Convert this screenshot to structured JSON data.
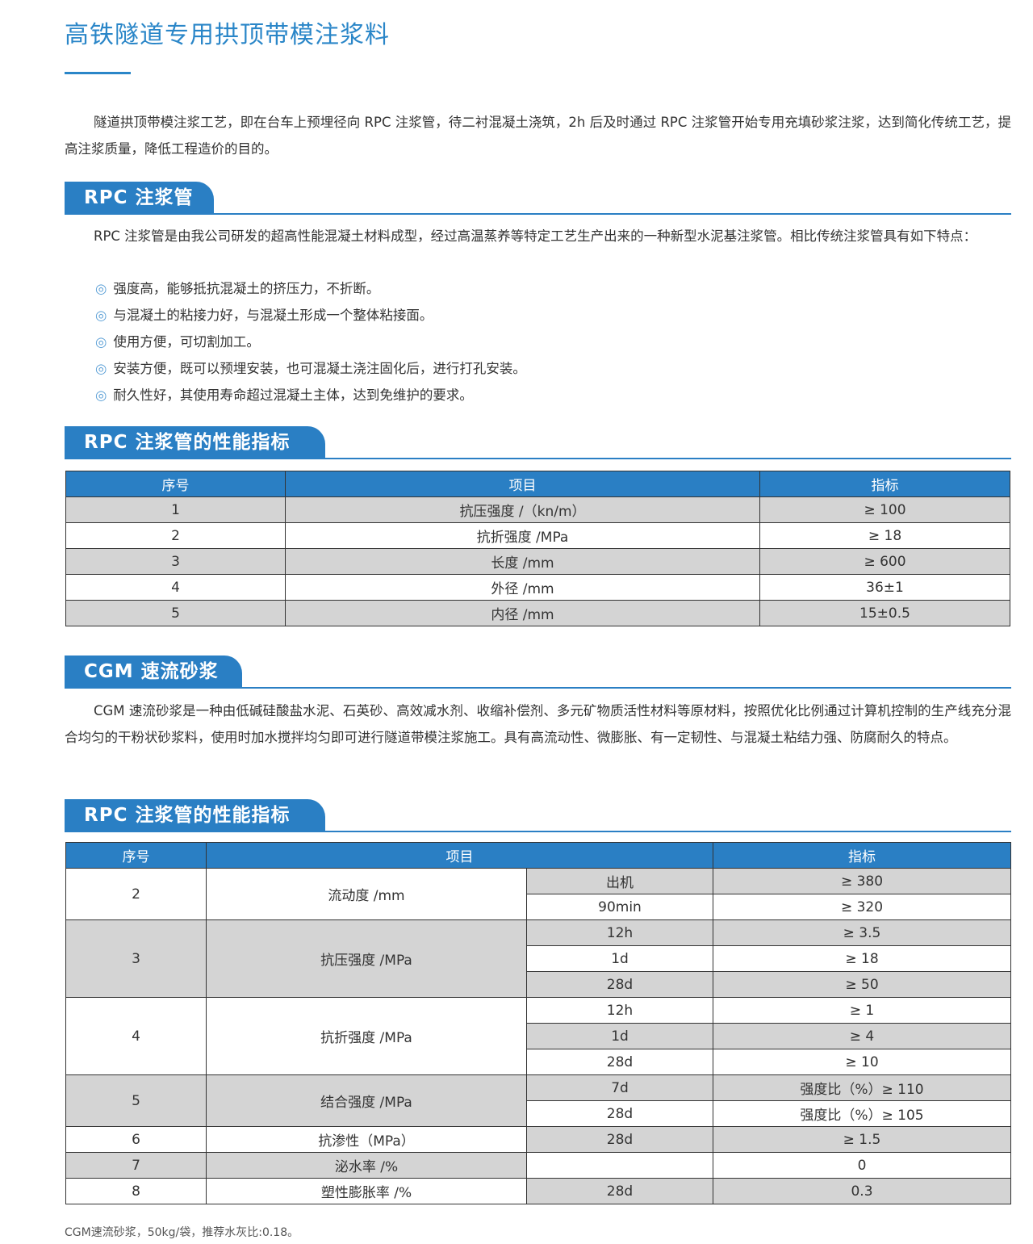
{
  "title": "高铁隧道专用拱顶带模注浆料",
  "intro": "隧道拱顶带模注浆工艺，即在台车上预埋径向 RPC 注浆管，待二衬混凝土浇筑，2h 后及时通过 RPC 注浆管开始专用充填砂浆注浆，达到简化传统工艺，提高注浆质量，降低工程造价的目的。",
  "sections": [
    {
      "title": "RPC 注浆管",
      "text": "RPC 注浆管是由我公司研发的超高性能混凝土材料成型，经过高温蒸养等特定工艺生产出来的一种新型水泥基注浆管。相比传统注浆管具有如下特点：",
      "bullet_symbol": "◎",
      "bullets": [
        "强度高，能够抵抗混凝土的挤压力，不折断。",
        "与混凝土的粘接力好，与混凝土形成一个整体粘接面。",
        "使用方便，可切割加工。",
        "安装方便，既可以预埋安装，也可混凝土浇注固化后，进行打孔安装。",
        "耐久性好，其使用寿命超过混凝土主体，达到免维护的要求。"
      ]
    },
    {
      "title": "RPC 注浆管的性能指标"
    },
    {
      "title": "CGM 速流砂浆",
      "text": "CGM 速流砂浆是一种由低碱硅酸盐水泥、石英砂、高效减水剂、收缩补偿剂、多元矿物质活性材料等原材料，按照优化比例通过计算机控制的生产线充分混合均匀的干粉状砂浆料，使用时加水搅拌均匀即可进行隧道带模注浆施工。具有高流动性、微膨胀、有一定韧性、与混凝土粘结力强、防腐耐久的特点。"
    },
    {
      "title": "RPC 注浆管的性能指标"
    }
  ],
  "table1": {
    "headers": [
      "序号",
      "项目",
      "指标"
    ],
    "rows": [
      [
        "1",
        "抗压强度 /（kn/m）",
        "≥ 100"
      ],
      [
        "2",
        "抗折强度 /MPa",
        "≥ 18"
      ],
      [
        "3",
        "长度 /mm",
        "≥ 600"
      ],
      [
        "4",
        "外径 /mm",
        "36±1"
      ],
      [
        "5",
        "内径 /mm",
        "15±0.5"
      ]
    ]
  },
  "table2": {
    "headers": [
      "序号",
      "项目",
      "指标"
    ],
    "groups": [
      {
        "no": "2",
        "item": "流动度 /mm",
        "sub": [
          [
            "出机",
            "≥ 380"
          ],
          [
            "90min",
            "≥ 320"
          ]
        ]
      },
      {
        "no": "3",
        "item": "抗压强度 /MPa",
        "sub": [
          [
            "12h",
            "≥ 3.5"
          ],
          [
            "1d",
            "≥ 18"
          ],
          [
            "28d",
            "≥ 50"
          ]
        ]
      },
      {
        "no": "4",
        "item": "抗折强度 /MPa",
        "sub": [
          [
            "12h",
            "≥ 1"
          ],
          [
            "1d",
            "≥ 4"
          ],
          [
            "28d",
            "≥ 10"
          ]
        ]
      },
      {
        "no": "5",
        "item": "结合强度 /MPa",
        "sub": [
          [
            "7d",
            "强度比（%）≥ 110"
          ],
          [
            "28d",
            "强度比（%）≥ 105"
          ]
        ]
      },
      {
        "no": "6",
        "item": "抗渗性（MPa）",
        "sub": [
          [
            "28d",
            "≥ 1.5"
          ]
        ]
      },
      {
        "no": "7",
        "item": "泌水率 /%",
        "sub": [
          [
            "",
            "0"
          ]
        ]
      },
      {
        "no": "8",
        "item": "塑性膨胀率 /%",
        "sub": [
          [
            "28d",
            "0.3"
          ]
        ]
      }
    ]
  },
  "note": "CGM速流砂浆，50kg/袋，推荐水灰比:0.18。",
  "colors": {
    "accent": "#2a7fc4",
    "title": "#2a86c8",
    "row_gray": "#d4d4d4"
  }
}
